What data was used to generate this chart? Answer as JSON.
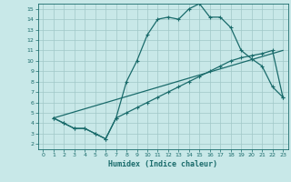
{
  "xlabel": "Humidex (Indice chaleur)",
  "bg_color": "#c8e8e8",
  "line_color": "#1a6b6b",
  "grid_color": "#a0c8c8",
  "xlim": [
    -0.5,
    23.5
  ],
  "ylim": [
    1.5,
    15.5
  ],
  "xticks": [
    0,
    1,
    2,
    3,
    4,
    5,
    6,
    7,
    8,
    9,
    10,
    11,
    12,
    13,
    14,
    15,
    16,
    17,
    18,
    19,
    20,
    21,
    22,
    23
  ],
  "yticks": [
    2,
    3,
    4,
    5,
    6,
    7,
    8,
    9,
    10,
    11,
    12,
    13,
    14,
    15
  ],
  "line1_x": [
    1,
    2,
    3,
    4,
    5,
    6,
    7,
    8,
    9,
    10,
    11,
    12,
    13,
    14,
    15,
    16,
    17,
    18,
    19,
    20,
    21,
    22,
    23
  ],
  "line1_y": [
    4.5,
    4.0,
    3.5,
    3.5,
    3.0,
    2.5,
    4.5,
    8.0,
    10.0,
    12.5,
    14.0,
    14.2,
    14.0,
    15.0,
    15.5,
    14.2,
    14.2,
    13.2,
    11.0,
    10.2,
    9.5,
    7.5,
    6.5
  ],
  "line2_x": [
    1,
    23
  ],
  "line2_y": [
    4.5,
    11.0
  ],
  "line3_x": [
    1,
    2,
    3,
    4,
    5,
    6,
    7,
    8,
    9,
    10,
    11,
    12,
    13,
    14,
    15,
    16,
    17,
    18,
    19,
    20,
    21,
    22,
    23
  ],
  "line3_y": [
    4.5,
    4.0,
    3.5,
    3.5,
    3.0,
    2.5,
    4.5,
    5.0,
    5.5,
    6.0,
    6.5,
    7.0,
    7.5,
    8.0,
    8.5,
    9.0,
    9.5,
    10.0,
    10.3,
    10.5,
    10.7,
    11.0,
    6.5
  ]
}
